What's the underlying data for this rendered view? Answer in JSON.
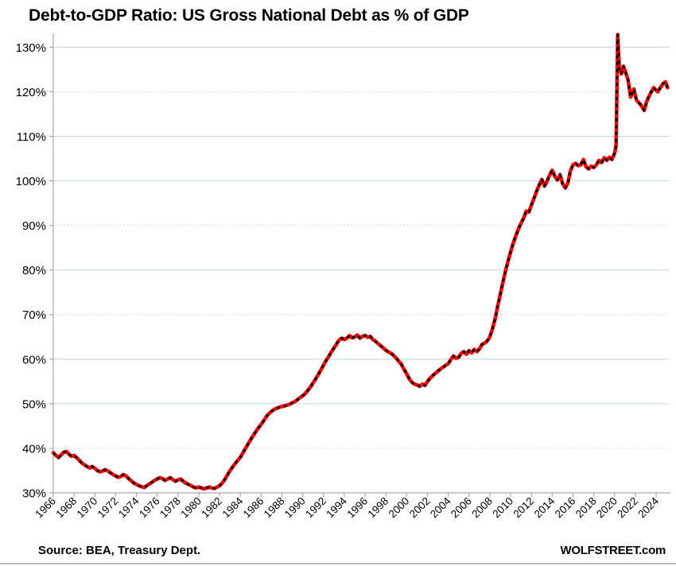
{
  "title": "Debt-to-GDP Ratio: US Gross National Debt as % of GDP",
  "footer": {
    "source": "Source: BEA, Treasury Dept.",
    "brand": "WOLFSTREET.com"
  },
  "colors": {
    "line_red": "#ff0000",
    "line_dash_black": "#000000",
    "grid_blue": "#c6d5ec",
    "grid_dotted_blue": "#cdd9f0",
    "axis_gray": "#a6a6a6",
    "text_black": "#000000",
    "divider_gray": "#b9b9b9"
  },
  "chart_data": {
    "type": "line",
    "title": "Debt-to-GDP Ratio: US Gross National Debt as % of GDP",
    "xlabel": "",
    "ylabel": "",
    "x_start": 1966,
    "x_end": 2025.4,
    "ylim": [
      30,
      133.5
    ],
    "grid": "horizontal-only",
    "legend": "none",
    "yticks": [
      {
        "value": 30,
        "label": "30%",
        "gridline": "none"
      },
      {
        "value": 40,
        "label": "40%",
        "gridline": "dotted"
      },
      {
        "value": 50,
        "label": "50%",
        "gridline": "solid"
      },
      {
        "value": 60,
        "label": "60%",
        "gridline": "solid"
      },
      {
        "value": 70,
        "label": "70%",
        "gridline": "dotted"
      },
      {
        "value": 80,
        "label": "80%",
        "gridline": "solid"
      },
      {
        "value": 90,
        "label": "90%",
        "gridline": "dotted"
      },
      {
        "value": 100,
        "label": "100%",
        "gridline": "solid"
      },
      {
        "value": 110,
        "label": "110%",
        "gridline": "solid"
      },
      {
        "value": 120,
        "label": "120%",
        "gridline": "dotted"
      },
      {
        "value": 130,
        "label": "130%",
        "gridline": "solid"
      }
    ],
    "xticks": [
      {
        "year": 1966,
        "label": "1966"
      },
      {
        "year": 1968,
        "label": "1968"
      },
      {
        "year": 1970,
        "label": "1970"
      },
      {
        "year": 1972,
        "label": "1972"
      },
      {
        "year": 1974,
        "label": "1974"
      },
      {
        "year": 1976,
        "label": "1976"
      },
      {
        "year": 1978,
        "label": "1978"
      },
      {
        "year": 1980,
        "label": "1980"
      },
      {
        "year": 1982,
        "label": "1982"
      },
      {
        "year": 1984,
        "label": "1984"
      },
      {
        "year": 1986,
        "label": "1986"
      },
      {
        "year": 1988,
        "label": "1988"
      },
      {
        "year": 1990,
        "label": "1990"
      },
      {
        "year": 1992,
        "label": "1992"
      },
      {
        "year": 1994,
        "label": "1994"
      },
      {
        "year": 1996,
        "label": "1996"
      },
      {
        "year": 1998,
        "label": "1998"
      },
      {
        "year": 2000,
        "label": "2000"
      },
      {
        "year": 2002,
        "label": "2002"
      },
      {
        "year": 2004,
        "label": "2004"
      },
      {
        "year": 2006,
        "label": "2006"
      },
      {
        "year": 2008,
        "label": "2008"
      },
      {
        "year": 2010,
        "label": "2010"
      },
      {
        "year": 2012,
        "label": "2012"
      },
      {
        "year": 2014,
        "label": "2014"
      },
      {
        "year": 2016,
        "label": "2016"
      },
      {
        "year": 2018,
        "label": "2018"
      },
      {
        "year": 2020,
        "label": "2020"
      },
      {
        "year": 2022,
        "label": "2022"
      },
      {
        "year": 2024,
        "label": "2024"
      }
    ],
    "series": [
      {
        "name": "US Gross National Debt as % of GDP",
        "style": "thick red line with black dash overlay",
        "points": [
          [
            1966.0,
            39.0
          ],
          [
            1966.25,
            38.4
          ],
          [
            1966.5,
            37.9
          ],
          [
            1966.75,
            38.5
          ],
          [
            1967.0,
            39.1
          ],
          [
            1967.25,
            39.3
          ],
          [
            1967.5,
            38.7
          ],
          [
            1967.75,
            38.2
          ],
          [
            1968.0,
            38.4
          ],
          [
            1968.25,
            37.9
          ],
          [
            1968.5,
            37.3
          ],
          [
            1968.75,
            36.7
          ],
          [
            1969.0,
            36.3
          ],
          [
            1969.25,
            35.9
          ],
          [
            1969.5,
            35.6
          ],
          [
            1969.75,
            35.9
          ],
          [
            1970.0,
            35.5
          ],
          [
            1970.25,
            35.0
          ],
          [
            1970.5,
            34.7
          ],
          [
            1970.75,
            34.9
          ],
          [
            1971.0,
            35.2
          ],
          [
            1971.25,
            34.9
          ],
          [
            1971.5,
            34.5
          ],
          [
            1971.75,
            34.1
          ],
          [
            1972.0,
            33.8
          ],
          [
            1972.25,
            33.5
          ],
          [
            1972.5,
            33.7
          ],
          [
            1972.75,
            34.1
          ],
          [
            1973.0,
            33.8
          ],
          [
            1973.25,
            33.2
          ],
          [
            1973.5,
            32.7
          ],
          [
            1973.75,
            32.2
          ],
          [
            1974.0,
            31.9
          ],
          [
            1974.25,
            31.6
          ],
          [
            1974.5,
            31.4
          ],
          [
            1974.75,
            31.2
          ],
          [
            1975.0,
            31.6
          ],
          [
            1975.25,
            32.0
          ],
          [
            1975.5,
            32.4
          ],
          [
            1975.75,
            32.8
          ],
          [
            1976.0,
            33.1
          ],
          [
            1976.25,
            33.4
          ],
          [
            1976.5,
            33.2
          ],
          [
            1976.75,
            32.8
          ],
          [
            1977.0,
            33.1
          ],
          [
            1977.25,
            33.4
          ],
          [
            1977.5,
            33.0
          ],
          [
            1977.75,
            32.6
          ],
          [
            1978.0,
            32.9
          ],
          [
            1978.25,
            33.1
          ],
          [
            1978.5,
            32.6
          ],
          [
            1978.75,
            32.2
          ],
          [
            1979.0,
            31.9
          ],
          [
            1979.25,
            31.6
          ],
          [
            1979.5,
            31.3
          ],
          [
            1979.75,
            31.1
          ],
          [
            1980.0,
            31.3
          ],
          [
            1980.25,
            31.1
          ],
          [
            1980.5,
            30.9
          ],
          [
            1980.75,
            31.1
          ],
          [
            1981.0,
            31.3
          ],
          [
            1981.25,
            31.1
          ],
          [
            1981.5,
            31.0
          ],
          [
            1981.75,
            31.3
          ],
          [
            1982.0,
            31.6
          ],
          [
            1982.25,
            32.2
          ],
          [
            1982.5,
            33.0
          ],
          [
            1982.75,
            34.0
          ],
          [
            1983.0,
            35.0
          ],
          [
            1983.25,
            35.8
          ],
          [
            1983.5,
            36.6
          ],
          [
            1983.75,
            37.3
          ],
          [
            1984.0,
            38.0
          ],
          [
            1984.25,
            39.0
          ],
          [
            1984.5,
            40.0
          ],
          [
            1984.75,
            41.0
          ],
          [
            1985.0,
            42.0
          ],
          [
            1985.25,
            42.9
          ],
          [
            1985.5,
            43.8
          ],
          [
            1985.75,
            44.6
          ],
          [
            1986.0,
            45.4
          ],
          [
            1986.25,
            46.2
          ],
          [
            1986.5,
            47.1
          ],
          [
            1986.75,
            47.8
          ],
          [
            1987.0,
            48.3
          ],
          [
            1987.25,
            48.7
          ],
          [
            1987.5,
            49.0
          ],
          [
            1987.75,
            49.2
          ],
          [
            1988.0,
            49.4
          ],
          [
            1988.25,
            49.5
          ],
          [
            1988.5,
            49.7
          ],
          [
            1988.75,
            49.9
          ],
          [
            1989.0,
            50.2
          ],
          [
            1989.25,
            50.5
          ],
          [
            1989.5,
            50.9
          ],
          [
            1989.75,
            51.4
          ],
          [
            1990.0,
            51.8
          ],
          [
            1990.25,
            52.3
          ],
          [
            1990.5,
            53.0
          ],
          [
            1990.75,
            53.8
          ],
          [
            1991.0,
            54.7
          ],
          [
            1991.25,
            55.6
          ],
          [
            1991.5,
            56.6
          ],
          [
            1991.75,
            57.6
          ],
          [
            1992.0,
            58.7
          ],
          [
            1992.25,
            59.7
          ],
          [
            1992.5,
            60.6
          ],
          [
            1992.75,
            61.6
          ],
          [
            1993.0,
            62.5
          ],
          [
            1993.25,
            63.4
          ],
          [
            1993.5,
            64.3
          ],
          [
            1993.75,
            64.7
          ],
          [
            1994.0,
            64.4
          ],
          [
            1994.25,
            64.7
          ],
          [
            1994.5,
            65.3
          ],
          [
            1994.75,
            64.8
          ],
          [
            1995.0,
            65.0
          ],
          [
            1995.25,
            65.4
          ],
          [
            1995.5,
            64.7
          ],
          [
            1995.75,
            65.1
          ],
          [
            1996.0,
            65.3
          ],
          [
            1996.25,
            64.9
          ],
          [
            1996.5,
            65.1
          ],
          [
            1996.75,
            64.4
          ],
          [
            1997.0,
            64.0
          ],
          [
            1997.25,
            63.5
          ],
          [
            1997.5,
            63.0
          ],
          [
            1997.75,
            62.5
          ],
          [
            1998.0,
            62.0
          ],
          [
            1998.25,
            61.6
          ],
          [
            1998.5,
            61.3
          ],
          [
            1998.75,
            60.8
          ],
          [
            1999.0,
            60.2
          ],
          [
            1999.25,
            59.5
          ],
          [
            1999.5,
            58.8
          ],
          [
            1999.75,
            57.7
          ],
          [
            2000.0,
            56.7
          ],
          [
            2000.25,
            55.6
          ],
          [
            2000.5,
            54.8
          ],
          [
            2000.75,
            54.4
          ],
          [
            2001.0,
            54.2
          ],
          [
            2001.25,
            53.9
          ],
          [
            2001.5,
            54.4
          ],
          [
            2001.75,
            54.1
          ],
          [
            2002.0,
            55.0
          ],
          [
            2002.25,
            55.7
          ],
          [
            2002.5,
            56.3
          ],
          [
            2002.75,
            56.8
          ],
          [
            2003.0,
            57.3
          ],
          [
            2003.25,
            57.8
          ],
          [
            2003.5,
            58.2
          ],
          [
            2003.75,
            58.6
          ],
          [
            2004.0,
            59.0
          ],
          [
            2004.25,
            59.9
          ],
          [
            2004.5,
            60.7
          ],
          [
            2004.75,
            60.2
          ],
          [
            2005.0,
            60.4
          ],
          [
            2005.25,
            61.3
          ],
          [
            2005.5,
            61.7
          ],
          [
            2005.75,
            61.1
          ],
          [
            2006.0,
            61.9
          ],
          [
            2006.25,
            61.4
          ],
          [
            2006.5,
            62.2
          ],
          [
            2006.75,
            61.7
          ],
          [
            2007.0,
            62.3
          ],
          [
            2007.25,
            63.3
          ],
          [
            2007.5,
            63.6
          ],
          [
            2007.75,
            64.1
          ],
          [
            2008.0,
            65.0
          ],
          [
            2008.25,
            66.8
          ],
          [
            2008.5,
            69.0
          ],
          [
            2008.75,
            71.8
          ],
          [
            2009.0,
            74.5
          ],
          [
            2009.25,
            77.2
          ],
          [
            2009.5,
            79.7
          ],
          [
            2009.75,
            82.0
          ],
          [
            2010.0,
            84.1
          ],
          [
            2010.25,
            86.0
          ],
          [
            2010.5,
            87.7
          ],
          [
            2010.75,
            89.2
          ],
          [
            2011.0,
            90.5
          ],
          [
            2011.25,
            91.6
          ],
          [
            2011.5,
            93.2
          ],
          [
            2011.75,
            93.0
          ],
          [
            2012.0,
            94.6
          ],
          [
            2012.25,
            96.1
          ],
          [
            2012.5,
            97.7
          ],
          [
            2012.75,
            99.1
          ],
          [
            2013.0,
            100.3
          ],
          [
            2013.25,
            98.8
          ],
          [
            2013.5,
            99.9
          ],
          [
            2013.75,
            101.3
          ],
          [
            2014.0,
            102.4
          ],
          [
            2014.25,
            101.0
          ],
          [
            2014.5,
            100.2
          ],
          [
            2014.75,
            101.4
          ],
          [
            2015.0,
            99.4
          ],
          [
            2015.25,
            98.4
          ],
          [
            2015.5,
            99.5
          ],
          [
            2015.75,
            102.2
          ],
          [
            2016.0,
            103.6
          ],
          [
            2016.25,
            103.9
          ],
          [
            2016.5,
            103.4
          ],
          [
            2016.75,
            103.6
          ],
          [
            2017.0,
            104.8
          ],
          [
            2017.25,
            103.2
          ],
          [
            2017.5,
            102.7
          ],
          [
            2017.75,
            103.3
          ],
          [
            2018.0,
            103.0
          ],
          [
            2018.25,
            103.6
          ],
          [
            2018.5,
            104.6
          ],
          [
            2018.75,
            104.1
          ],
          [
            2019.0,
            105.2
          ],
          [
            2019.25,
            104.6
          ],
          [
            2019.5,
            105.3
          ],
          [
            2019.75,
            104.8
          ],
          [
            2020.0,
            106.2
          ],
          [
            2020.15,
            108.0
          ],
          [
            2020.3,
            132.8
          ],
          [
            2020.45,
            125.2
          ],
          [
            2020.65,
            124.0
          ],
          [
            2020.85,
            125.7
          ],
          [
            2021.05,
            124.4
          ],
          [
            2021.3,
            122.6
          ],
          [
            2021.55,
            118.8
          ],
          [
            2021.85,
            120.6
          ],
          [
            2022.1,
            118.2
          ],
          [
            2022.3,
            117.6
          ],
          [
            2022.55,
            117.0
          ],
          [
            2022.85,
            115.8
          ],
          [
            2023.1,
            117.9
          ],
          [
            2023.4,
            119.4
          ],
          [
            2023.75,
            120.9
          ],
          [
            2023.95,
            120.4
          ],
          [
            2024.15,
            120.0
          ],
          [
            2024.4,
            120.9
          ],
          [
            2024.65,
            121.8
          ],
          [
            2024.9,
            122.2
          ],
          [
            2025.1,
            120.9
          ]
        ]
      }
    ]
  }
}
